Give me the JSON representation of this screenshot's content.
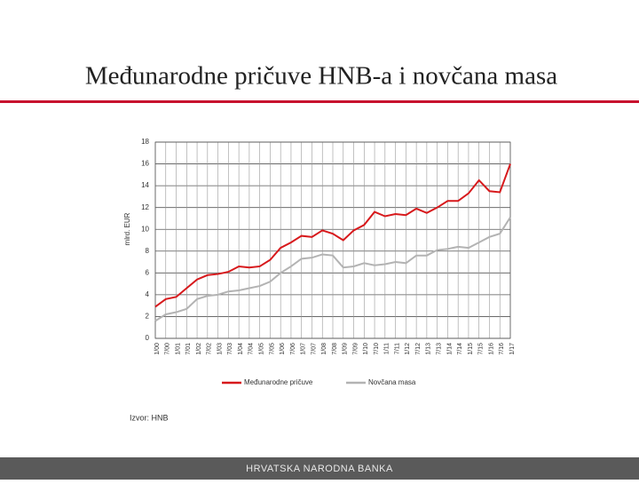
{
  "chart_data": {
    "type": "line",
    "title": "Međunarodne pričuve HNB-a i novčana masa",
    "y_label": "mlrd. EUR",
    "categories": [
      "1/00",
      "7/00",
      "1/01",
      "7/01",
      "1/02",
      "7/02",
      "1/03",
      "7/03",
      "1/04",
      "7/04",
      "1/05",
      "7/05",
      "1/06",
      "7/06",
      "1/07",
      "7/07",
      "1/08",
      "7/08",
      "1/09",
      "7/09",
      "1/10",
      "7/10",
      "1/11",
      "7/11",
      "1/12",
      "7/12",
      "1/13",
      "7/13",
      "1/14",
      "7/14",
      "1/15",
      "7/15",
      "1/16",
      "7/16",
      "1/17"
    ],
    "series": [
      {
        "name": "Međunarodne pričuve",
        "color": "#d7191c",
        "values": [
          2.9,
          3.6,
          3.8,
          4.6,
          5.4,
          5.8,
          5.9,
          6.1,
          6.6,
          6.5,
          6.6,
          7.2,
          8.3,
          8.8,
          9.4,
          9.3,
          9.9,
          9.6,
          9.0,
          9.9,
          10.4,
          11.6,
          11.2,
          11.4,
          11.3,
          11.9,
          11.5,
          12.0,
          12.6,
          12.6,
          13.3,
          14.5,
          13.5,
          13.4,
          16.0
        ]
      },
      {
        "name": "Novčana masa",
        "color": "#b3b3b3",
        "values": [
          1.6,
          2.2,
          2.4,
          2.7,
          3.6,
          3.9,
          4.0,
          4.3,
          4.4,
          4.6,
          4.8,
          5.2,
          6.0,
          6.6,
          7.3,
          7.4,
          7.7,
          7.6,
          6.5,
          6.6,
          6.9,
          6.7,
          6.8,
          7.0,
          6.9,
          7.6,
          7.6,
          8.1,
          8.2,
          8.4,
          8.3,
          8.8,
          9.3,
          9.6,
          11.1
        ]
      }
    ],
    "ylim": [
      0,
      18
    ],
    "yticks": [
      0,
      2,
      4,
      6,
      8,
      10,
      12,
      14,
      16,
      18
    ],
    "grid": true
  },
  "source": "Izvor: HNB",
  "footer": "HRVATSKA NARODNA BANKA"
}
